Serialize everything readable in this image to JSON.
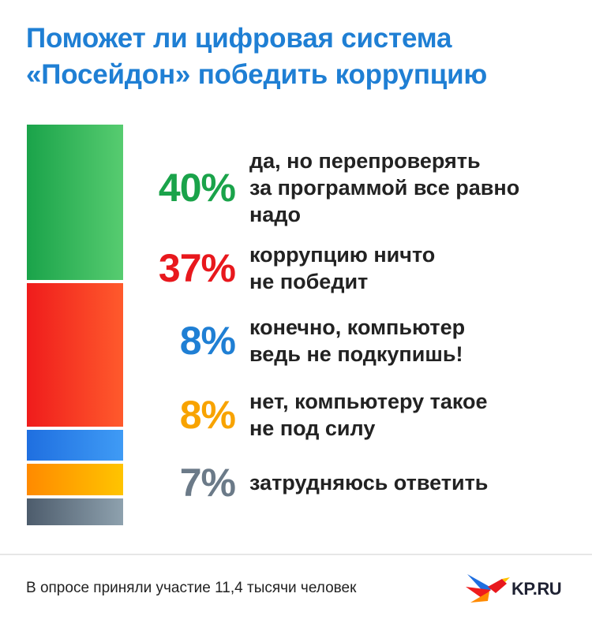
{
  "title_lines": [
    "Поможет ли цифровая система",
    "«Посейдон» победить коррупцию"
  ],
  "chart_data": {
    "type": "bar",
    "stacked": true,
    "orientation": "vertical",
    "categories": [
      "да, но перепроверять\nза программой все равно\nнадо",
      "коррупцию ничто\nне победит",
      "конечно, компьютер\nведь не подкупишь!",
      "нет, компьютеру такое\nне под силу",
      "затрудняюсь ответить"
    ],
    "values": [
      40,
      37,
      8,
      8,
      7
    ],
    "value_labels": [
      "40%",
      "37%",
      "8%",
      "8%",
      "7%"
    ],
    "colors": [
      [
        "#1aa34a",
        "#57cc70"
      ],
      [
        "#ef1c1c",
        "#ff5a2c"
      ],
      [
        "#1f6fe0",
        "#3f9bf5"
      ],
      [
        "#ff8a00",
        "#ffc400"
      ],
      [
        "#4d5c6c",
        "#8ea1ae"
      ]
    ],
    "label_colors": [
      "#1aa34a",
      "#e8181d",
      "#1f7fd4",
      "#f8a300",
      "#6b7a88"
    ]
  },
  "footer": "В опросе приняли участие 11,4 тысячи человек",
  "logo_text": "KP.RU"
}
